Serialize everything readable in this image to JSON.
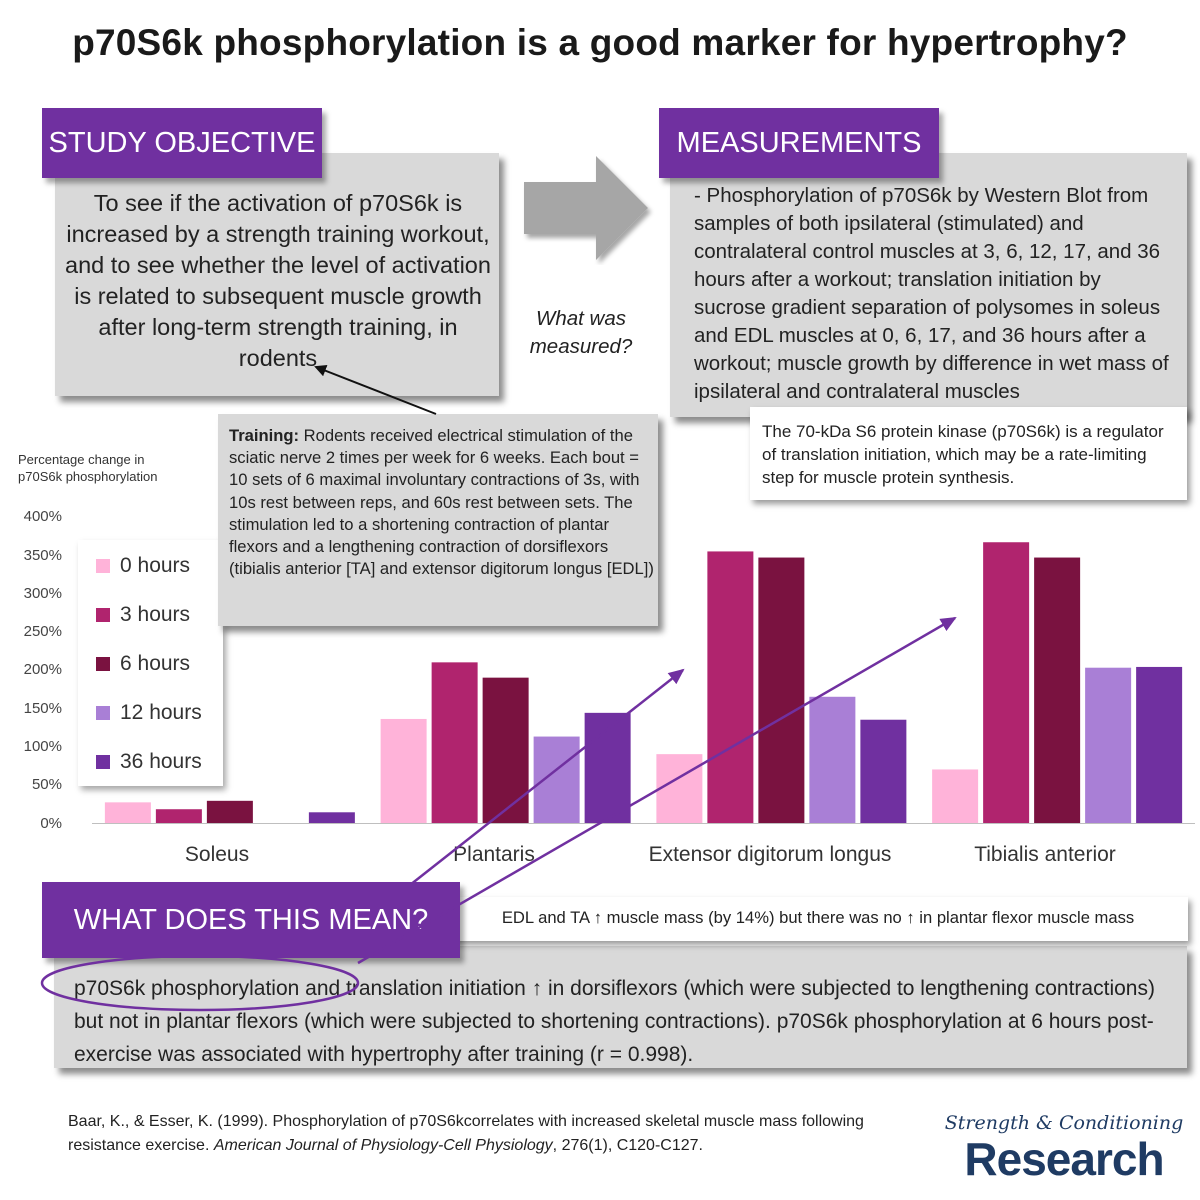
{
  "title": "p70S6k phosphorylation is a good marker for hypertrophy?",
  "objective": {
    "heading": "STUDY OBJECTIVE",
    "text": "To see if the activation of p70S6k is increased by a strength training workout, and to see whether the level of activation is related to subsequent muscle growth after long-term strength training, in rodents"
  },
  "arrow_question": "What was measured?",
  "measurements": {
    "heading": "MEASUREMENTS",
    "text": "- Phosphorylation of p70S6k by Western Blot from samples of both ipsilateral (stimulated) and contralateral control muscles at 3, 6, 12, 17, and 36 hours after a workout; translation initiation by sucrose gradient separation of polysomes in soleus and EDL muscles at 0, 6, 17, and 36 hours after a workout; muscle growth by difference in wet mass of ipsilateral and contralateral muscles"
  },
  "kinase_note": "The 70-kDa S6 protein kinase (p70S6k) is a regulator of translation initiation, which may be a rate-limiting step for muscle protein synthesis.",
  "training": {
    "label": "Training:",
    "text": " Rodents received electrical stimulation of the sciatic nerve 2 times per week for 6 weeks. Each bout = 10 sets of 6 maximal involuntary contractions of 3s, with 10s rest between reps, and 60s rest between sets. The stimulation led to a shortening contraction of plantar flexors and a lengthening contraction of dorsiflexors (tibialis anterior [TA] and extensor digitorum longus [EDL])"
  },
  "chart_data": {
    "type": "bar",
    "ylabel": "Percentage change in p70S6k phosphorylation",
    "ylim": [
      0,
      400
    ],
    "yticks": [
      "0%",
      "50%",
      "100%",
      "150%",
      "200%",
      "250%",
      "300%",
      "350%",
      "400%"
    ],
    "categories": [
      "Soleus",
      "Plantaris",
      "Extensor digitorum longus",
      "Tibialis anterior"
    ],
    "legend_position": "left",
    "series": [
      {
        "name": "0 hours",
        "color": "#ffb3d9",
        "values": [
          27,
          136,
          90,
          70
        ]
      },
      {
        "name": "3 hours",
        "color": "#b0246e",
        "values": [
          18,
          210,
          355,
          367
        ]
      },
      {
        "name": "6 hours",
        "color": "#7a1240",
        "values": [
          29,
          190,
          347,
          347
        ]
      },
      {
        "name": "12 hours",
        "color": "#a97fd6",
        "values": [
          0,
          113,
          165,
          203
        ]
      },
      {
        "name": "36 hours",
        "color": "#7030a0",
        "values": [
          14,
          144,
          135,
          204
        ]
      }
    ]
  },
  "meaning": {
    "heading": "WHAT DOES THIS MEAN?",
    "mass_note": "EDL and TA ↑ muscle mass (by 14%) but there was no ↑ in plantar flexor muscle mass",
    "text": "p70S6k phosphorylation and translation initiation ↑ in dorsiflexors (which were subjected to lengthening contractions) but not in plantar flexors (which were subjected to shortening contractions). p70S6k phosphorylation at 6 hours post-exercise was associated with hypertrophy after training (r = 0.998)."
  },
  "citation": {
    "part1": "Baar, K., & Esser, K. (1999). Phosphorylation of p70S6kcorrelates with increased skeletal muscle mass following resistance exercise. ",
    "journal": "American Journal of Physiology-Cell Physiology",
    "part2": ", 276(1), C120-C127."
  },
  "brand": {
    "line1": "Strength & Conditioning",
    "line2": "Research"
  },
  "colors": {
    "accent_purple": "#7030a0",
    "box_gray": "#d9d9d9",
    "brand_navy": "#1f3b63"
  }
}
